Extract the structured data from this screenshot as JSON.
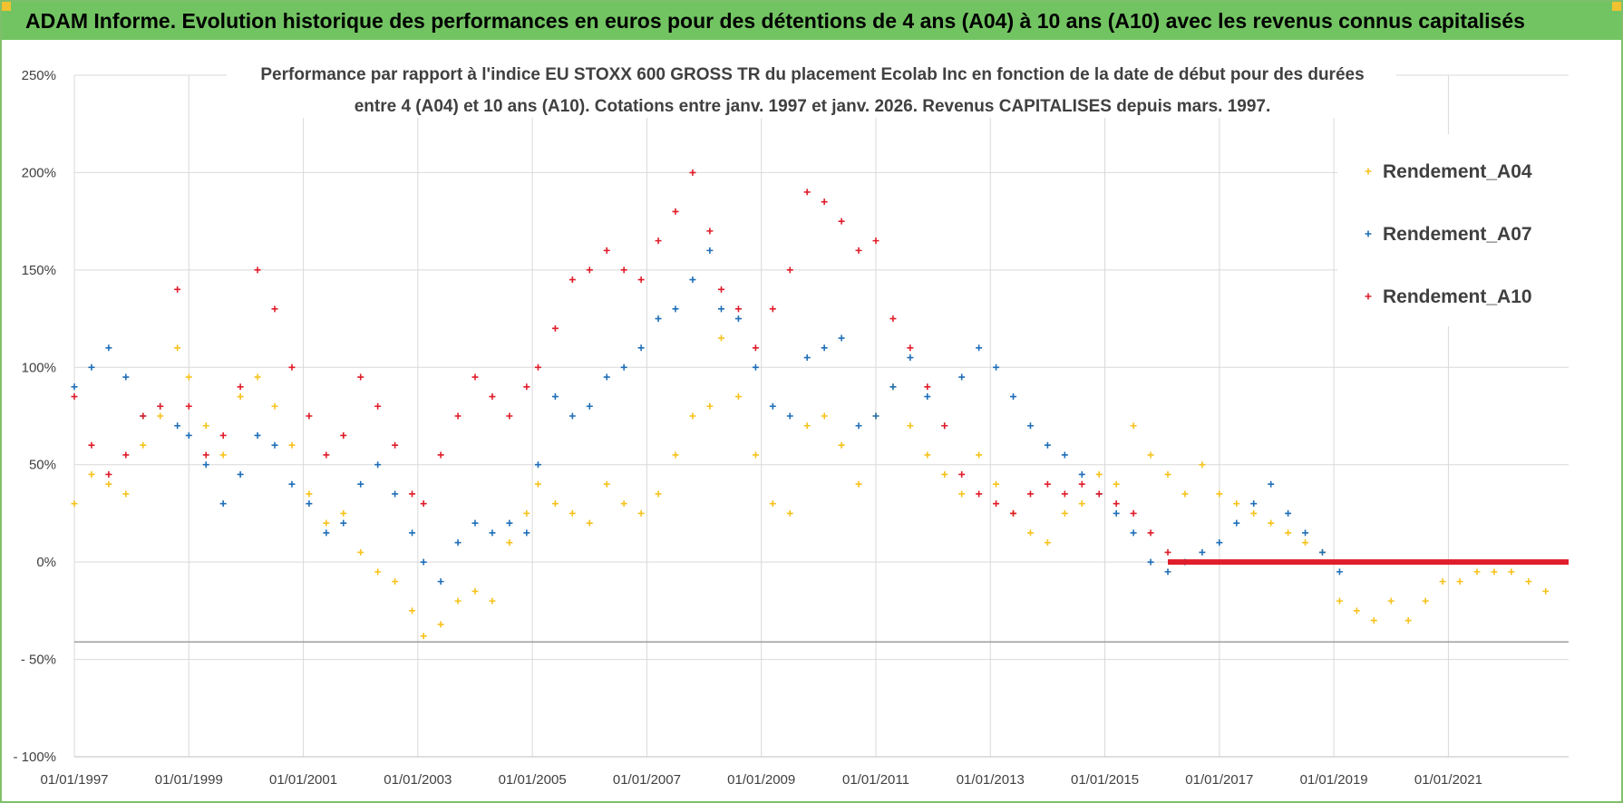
{
  "banner": {
    "title": "ADAM Informe. Evolution historique des performances en euros pour des détentions de 4 ans (A04) à 10 ans (A10) avec les revenus connus capitalisés"
  },
  "colors": {
    "banner_bg": "#72c462",
    "a04": "#f7c21b",
    "a07": "#1f6fb8",
    "a10": "#e01d2a",
    "grid": "#d9d9d9",
    "text": "#404040"
  },
  "chart_data": {
    "type": "scatter",
    "title_lines": [
      "Performance par rapport à l'indice EU STOXX 600 GROSS TR  du placement Ecolab Inc en fonction de la date de début pour des durées",
      "entre 4 (A04) et 10 ans (A10). Cotations entre janv. 1997 et janv. 2026. Revenus CAPITALISES depuis mars. 1997."
    ],
    "x_tick_labels": [
      "01/01/1997",
      "01/01/1999",
      "01/01/2001",
      "01/01/2003",
      "01/01/2005",
      "01/01/2007",
      "01/01/2009",
      "01/01/2011",
      "01/01/2013",
      "01/01/2015",
      "01/01/2017",
      "01/01/2019",
      "01/01/2021"
    ],
    "x_tick_years": [
      1997,
      1999,
      2001,
      2003,
      2005,
      2007,
      2009,
      2011,
      2013,
      2015,
      2017,
      2019,
      2021
    ],
    "xlim": [
      1997.0,
      2023.1
    ],
    "y_tick_values": [
      250,
      200,
      150,
      100,
      50,
      0,
      -50,
      -100
    ],
    "y_tick_labels": [
      "250%",
      "200%",
      "150%",
      "100%",
      "50%",
      "0%",
      "- 50%",
      "- 100%"
    ],
    "ylim": [
      -100,
      250
    ],
    "legend": [
      "Rendement_A04",
      "Rendement_A07",
      "Rendement_A10"
    ],
    "legend_position": "top-right",
    "series": [
      {
        "name": "Rendement_A04",
        "x": [
          1997.0,
          1997.3,
          1997.6,
          1997.9,
          1998.2,
          1998.5,
          1998.8,
          1999.0,
          1999.3,
          1999.6,
          1999.9,
          2000.2,
          2000.5,
          2000.8,
          2001.1,
          2001.4,
          2001.7,
          2002.0,
          2002.3,
          2002.6,
          2002.9,
          2003.1,
          2003.4,
          2003.7,
          2004.0,
          2004.3,
          2004.6,
          2004.9,
          2005.1,
          2005.4,
          2005.7,
          2006.0,
          2006.3,
          2006.6,
          2006.9,
          2007.2,
          2007.5,
          2007.8,
          2008.1,
          2008.3,
          2008.6,
          2008.9,
          2009.2,
          2009.5,
          2009.8,
          2010.1,
          2010.4,
          2010.7,
          2011.0,
          2011.3,
          2011.6,
          2011.9,
          2012.2,
          2012.5,
          2012.8,
          2013.1,
          2013.4,
          2013.7,
          2014.0,
          2014.3,
          2014.6,
          2014.9,
          2015.2,
          2015.5,
          2015.8,
          2016.1,
          2016.4,
          2016.7,
          2017.0,
          2017.3,
          2017.6,
          2017.9,
          2018.2,
          2018.5,
          2018.8,
          2019.1,
          2019.4,
          2019.7,
          2020.0,
          2020.3,
          2020.6,
          2020.9,
          2021.2,
          2021.5,
          2021.8,
          2022.1,
          2022.4,
          2022.7
        ],
        "y": [
          30,
          45,
          40,
          35,
          60,
          75,
          110,
          95,
          70,
          55,
          85,
          95,
          80,
          60,
          35,
          20,
          25,
          5,
          -5,
          -10,
          -25,
          -38,
          -32,
          -20,
          -15,
          -20,
          10,
          25,
          40,
          30,
          25,
          20,
          40,
          30,
          25,
          35,
          55,
          75,
          80,
          115,
          85,
          55,
          30,
          25,
          70,
          75,
          60,
          40,
          75,
          90,
          70,
          55,
          45,
          35,
          55,
          40,
          25,
          15,
          10,
          25,
          30,
          45,
          40,
          70,
          55,
          45,
          35,
          50,
          35,
          30,
          25,
          20,
          15,
          10,
          5,
          -20,
          -25,
          -30,
          -20,
          -30,
          -20,
          -10,
          -10,
          -5,
          -5,
          -5,
          -10,
          -15
        ]
      },
      {
        "name": "Rendement_A07",
        "x": [
          1997.0,
          1997.3,
          1997.6,
          1997.9,
          1998.2,
          1998.5,
          1998.8,
          1999.0,
          1999.3,
          1999.6,
          1999.9,
          2000.2,
          2000.5,
          2000.8,
          2001.1,
          2001.4,
          2001.7,
          2002.0,
          2002.3,
          2002.6,
          2002.9,
          2003.1,
          2003.4,
          2003.7,
          2004.0,
          2004.3,
          2004.6,
          2004.9,
          2005.1,
          2005.4,
          2005.7,
          2006.0,
          2006.3,
          2006.6,
          2006.9,
          2007.2,
          2007.5,
          2007.8,
          2008.1,
          2008.3,
          2008.6,
          2008.9,
          2009.2,
          2009.5,
          2009.8,
          2010.1,
          2010.4,
          2010.7,
          2011.0,
          2011.3,
          2011.6,
          2011.9,
          2012.2,
          2012.5,
          2012.8,
          2013.1,
          2013.4,
          2013.7,
          2014.0,
          2014.3,
          2014.6,
          2014.9,
          2015.2,
          2015.5,
          2015.8,
          2016.1,
          2016.4,
          2016.7,
          2017.0,
          2017.3,
          2017.6,
          2017.9,
          2018.2,
          2018.5,
          2018.8,
          2019.1
        ],
        "y": [
          90,
          100,
          110,
          95,
          75,
          80,
          70,
          65,
          50,
          30,
          45,
          65,
          60,
          40,
          30,
          15,
          20,
          40,
          50,
          35,
          15,
          0,
          -10,
          10,
          20,
          15,
          20,
          15,
          50,
          85,
          75,
          80,
          95,
          100,
          110,
          125,
          130,
          145,
          160,
          130,
          125,
          100,
          80,
          75,
          105,
          110,
          115,
          70,
          75,
          90,
          105,
          85,
          70,
          95,
          110,
          100,
          85,
          70,
          60,
          55,
          45,
          35,
          25,
          15,
          0,
          -5,
          0,
          5,
          10,
          20,
          30,
          40,
          25,
          15,
          5,
          -5
        ]
      },
      {
        "name": "Rendement_A10",
        "x": [
          1997.0,
          1997.3,
          1997.6,
          1997.9,
          1998.2,
          1998.5,
          1998.8,
          1999.0,
          1999.3,
          1999.6,
          1999.9,
          2000.2,
          2000.5,
          2000.8,
          2001.1,
          2001.4,
          2001.7,
          2002.0,
          2002.3,
          2002.6,
          2002.9,
          2003.1,
          2003.4,
          2003.7,
          2004.0,
          2004.3,
          2004.6,
          2004.9,
          2005.1,
          2005.4,
          2005.7,
          2006.0,
          2006.3,
          2006.6,
          2006.9,
          2007.2,
          2007.5,
          2007.8,
          2008.1,
          2008.3,
          2008.6,
          2008.9,
          2009.2,
          2009.5,
          2009.8,
          2010.1,
          2010.4,
          2010.7,
          2011.0,
          2011.3,
          2011.6,
          2011.9,
          2012.2,
          2012.5,
          2012.8,
          2013.1,
          2013.4,
          2013.7,
          2014.0,
          2014.3,
          2014.6,
          2014.9,
          2015.2,
          2015.5,
          2015.8,
          2016.1
        ],
        "y": [
          85,
          60,
          45,
          55,
          75,
          80,
          140,
          80,
          55,
          65,
          90,
          150,
          130,
          100,
          75,
          55,
          65,
          95,
          80,
          60,
          35,
          30,
          55,
          75,
          95,
          85,
          75,
          90,
          100,
          120,
          145,
          150,
          160,
          150,
          145,
          165,
          180,
          200,
          170,
          140,
          130,
          110,
          130,
          150,
          190,
          185,
          175,
          160,
          165,
          125,
          110,
          90,
          70,
          45,
          35,
          30,
          25,
          35,
          40,
          35,
          40,
          35,
          30,
          25,
          15,
          5
        ]
      }
    ],
    "flat_line": {
      "name": "Rendement_A10",
      "from": 2016.1,
      "to": 2023.1,
      "value": 0
    }
  }
}
